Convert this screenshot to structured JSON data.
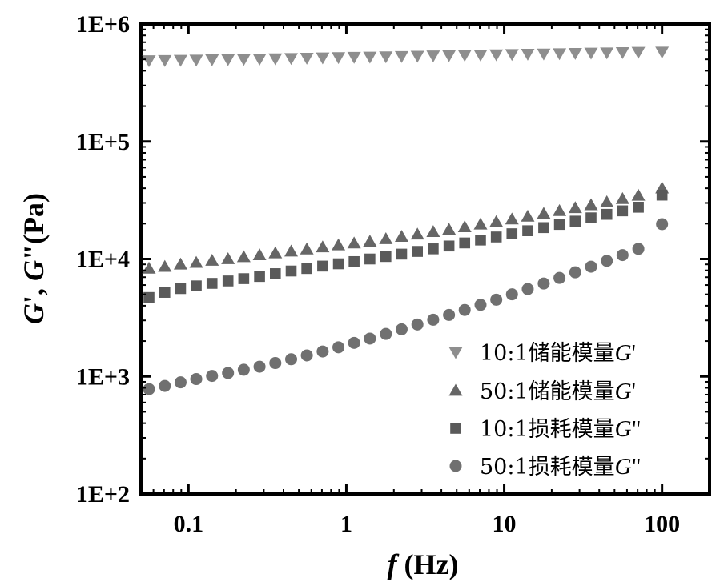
{
  "chart_data": {
    "type": "scatter",
    "x_scale": "log",
    "y_scale": "log",
    "xlim": [
      0.05,
      200
    ],
    "ylim": [
      100,
      1000000
    ],
    "x_ticks": [
      0.1,
      1,
      10,
      100
    ],
    "x_tick_labels": [
      "0.1",
      "1",
      "10",
      "100"
    ],
    "y_ticks": [
      100,
      1000,
      10000,
      100000,
      1000000
    ],
    "y_tick_labels": [
      "1E+2",
      "1E+3",
      "1E+4",
      "1E+5",
      "1E+6"
    ],
    "xlabel": {
      "italic": "f",
      "normal": " (Hz)"
    },
    "ylabel": {
      "part1_italic": "G",
      "part2": "', ",
      "part3_italic": "G",
      "part4": "\"(Pa)"
    },
    "legend_position": "bottom-right",
    "grid": false,
    "x": [
      0.0562,
      0.0708,
      0.0891,
      0.112,
      0.141,
      0.178,
      0.224,
      0.282,
      0.355,
      0.447,
      0.562,
      0.708,
      0.891,
      1.12,
      1.41,
      1.78,
      2.24,
      2.82,
      3.55,
      4.47,
      5.62,
      7.08,
      8.91,
      11.2,
      14.1,
      17.8,
      22.4,
      28.2,
      35.5,
      44.7,
      56.2,
      70.8,
      100
    ],
    "series": [
      {
        "name": "10:1储能模量G'",
        "legend": {
          "prefix": "10:1储能模量",
          "italic": "G",
          "suffix": "'"
        },
        "marker": "triangle-down",
        "color": "#8e8e8e",
        "values": [
          490000,
          492000,
          494000,
          496000,
          498000,
          500000,
          502000,
          505000,
          508000,
          511000,
          514000,
          517000,
          520000,
          523000,
          526000,
          529000,
          532000,
          535000,
          538000,
          541000,
          544000,
          547000,
          550000,
          553000,
          556000,
          559000,
          562000,
          565000,
          568000,
          571000,
          574000,
          577000,
          580000
        ]
      },
      {
        "name": "50:1储能模量G'",
        "legend": {
          "prefix": "50:1储能模量",
          "italic": "G",
          "suffix": "'"
        },
        "marker": "triangle-up",
        "color": "#666666",
        "values": [
          8300,
          8600,
          9000,
          9300,
          9700,
          10000,
          10400,
          10800,
          11200,
          11600,
          12100,
          12600,
          13100,
          13600,
          14100,
          14800,
          15500,
          16200,
          17000,
          17800,
          18700,
          19700,
          20700,
          21800,
          23000,
          24300,
          25700,
          27200,
          28800,
          30500,
          32500,
          34700,
          40000
        ]
      },
      {
        "name": "10:1损耗模量G\"",
        "legend": {
          "prefix": "10:1损耗模量",
          "italic": "G",
          "suffix": "\""
        },
        "marker": "square",
        "color": "#5a5a5a",
        "values": [
          4700,
          5200,
          5600,
          5900,
          6200,
          6500,
          6800,
          7100,
          7500,
          7900,
          8300,
          8700,
          9100,
          9500,
          10000,
          10500,
          11000,
          11600,
          12200,
          12900,
          13700,
          14500,
          15400,
          16400,
          17400,
          18500,
          19700,
          21000,
          22400,
          24000,
          25700,
          27600,
          35000
        ]
      },
      {
        "name": "50:1损耗模量G\"",
        "legend": {
          "prefix": "50:1损耗模量",
          "italic": "G",
          "suffix": "\""
        },
        "marker": "circle",
        "color": "#707070",
        "values": [
          780,
          830,
          890,
          950,
          1010,
          1070,
          1140,
          1210,
          1300,
          1400,
          1510,
          1630,
          1770,
          1930,
          2100,
          2300,
          2520,
          2770,
          3040,
          3340,
          3680,
          4070,
          4500,
          5000,
          5550,
          6180,
          6900,
          7700,
          8600,
          9650,
          10800,
          12200,
          19800
        ]
      }
    ]
  }
}
